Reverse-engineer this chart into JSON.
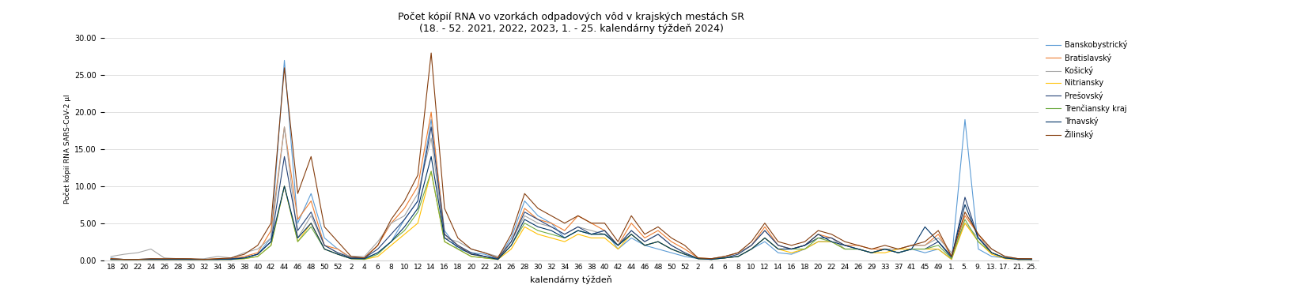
{
  "title_line1": "Počet kópií RNA vo vzorkách odpadových vôd v krajských mestách SR",
  "title_line2": "(18. - 52. 2021, 2022, 2023, 1. - 25. kalendárny týždeň 2024)",
  "xlabel": "kalendárny týždeň",
  "ylabel": "Počet kópií RNA SARS-CoV-2 µl",
  "ylim": [
    0,
    30
  ],
  "yticks": [
    0.0,
    5.0,
    10.0,
    15.0,
    20.0,
    25.0,
    30.0
  ],
  "regions": [
    "Banskobystrický",
    "Bratislavský",
    "Košický",
    "Nitriansky",
    "Prešovský",
    "Trenčiansky kraj",
    "Trnavský",
    "Žilinský"
  ],
  "colors": [
    "#5B9BD5",
    "#ED7D31",
    "#A5A5A5",
    "#FFC000",
    "#264478",
    "#70AD47",
    "#003366",
    "#843C0C"
  ],
  "x_labels": [
    "18",
    "20",
    "22",
    "24",
    "26",
    "28",
    "30",
    "32",
    "34",
    "36",
    "38",
    "40",
    "42",
    "44",
    "46",
    "48",
    "50",
    "52",
    "2",
    "4",
    "6",
    "8",
    "10",
    "12",
    "14",
    "16",
    "18",
    "20",
    "22",
    "24",
    "26",
    "28",
    "30",
    "32",
    "34",
    "36",
    "38",
    "40",
    "42",
    "44",
    "46",
    "48",
    "50",
    "52",
    "2",
    "4",
    "6",
    "8",
    "10",
    "12",
    "14",
    "16",
    "18",
    "20",
    "22",
    "24",
    "26",
    "29",
    "33",
    "37",
    "41",
    "45",
    "49",
    "1.",
    "5.",
    "9.",
    "13.",
    "17.",
    "21.",
    "25."
  ],
  "series": {
    "Banskobystrický": [
      0.3,
      0.1,
      0.1,
      0.2,
      0.1,
      0.2,
      0.1,
      0.1,
      0.1,
      0.2,
      0.3,
      0.8,
      3.0,
      27.0,
      5.0,
      9.0,
      3.0,
      1.5,
      0.3,
      0.2,
      1.0,
      2.5,
      5.5,
      8.0,
      19.0,
      4.0,
      1.5,
      1.0,
      0.8,
      0.2,
      3.0,
      8.0,
      6.0,
      5.0,
      3.0,
      4.0,
      3.5,
      4.0,
      1.5,
      3.0,
      2.0,
      1.5,
      1.0,
      0.5,
      0.2,
      0.1,
      0.3,
      0.5,
      1.5,
      2.5,
      1.0,
      0.8,
      1.5,
      2.5,
      2.5,
      1.5,
      1.5,
      1.0,
      1.5,
      1.0,
      1.5,
      1.0,
      1.5,
      0.1,
      19.0,
      1.5,
      0.5,
      0.3,
      0.1,
      0.1
    ],
    "Bratislavský": [
      0.2,
      0.1,
      0.1,
      0.1,
      0.1,
      0.1,
      0.1,
      0.1,
      0.2,
      0.2,
      0.5,
      1.0,
      4.0,
      18.0,
      5.5,
      8.0,
      2.0,
      1.5,
      0.3,
      0.3,
      2.0,
      5.0,
      7.0,
      10.0,
      20.0,
      3.5,
      2.0,
      0.8,
      0.5,
      0.1,
      2.5,
      7.0,
      5.5,
      5.0,
      4.0,
      6.0,
      5.0,
      4.0,
      2.0,
      5.0,
      3.0,
      4.0,
      2.5,
      1.5,
      0.3,
      0.2,
      0.5,
      1.0,
      2.0,
      4.5,
      2.0,
      1.5,
      2.0,
      3.5,
      3.0,
      2.0,
      2.0,
      1.5,
      1.5,
      1.5,
      2.0,
      2.0,
      3.5,
      0.5,
      6.0,
      3.5,
      1.0,
      0.3,
      0.1,
      0.2
    ],
    "Košický": [
      0.5,
      0.8,
      1.0,
      1.5,
      0.3,
      0.2,
      0.1,
      0.2,
      0.5,
      0.3,
      1.0,
      1.5,
      3.0,
      18.0,
      3.0,
      6.0,
      2.0,
      1.0,
      0.5,
      0.5,
      2.5,
      5.0,
      6.0,
      9.0,
      16.5,
      3.0,
      2.5,
      1.5,
      1.0,
      0.5,
      2.5,
      6.0,
      5.0,
      4.5,
      3.5,
      4.5,
      4.0,
      3.5,
      2.0,
      4.0,
      2.5,
      3.5,
      2.0,
      1.0,
      0.2,
      0.2,
      0.5,
      1.0,
      2.0,
      4.0,
      2.0,
      1.5,
      2.0,
      3.0,
      3.0,
      1.5,
      1.5,
      1.0,
      1.5,
      1.5,
      2.0,
      2.0,
      3.0,
      1.0,
      5.0,
      3.0,
      1.5,
      0.5,
      0.2,
      0.2
    ],
    "Nitriansky": [
      0.1,
      0.1,
      0.1,
      0.1,
      0.1,
      0.1,
      0.1,
      0.1,
      0.1,
      0.1,
      0.2,
      0.5,
      2.0,
      10.0,
      2.5,
      5.0,
      1.5,
      0.8,
      0.2,
      0.1,
      0.5,
      2.0,
      3.5,
      5.0,
      12.0,
      2.5,
      1.5,
      0.5,
      0.3,
      0.1,
      1.5,
      4.5,
      3.5,
      3.0,
      2.5,
      3.5,
      3.0,
      3.0,
      1.5,
      3.5,
      2.0,
      2.5,
      1.5,
      0.8,
      0.2,
      0.1,
      0.3,
      0.5,
      1.5,
      3.0,
      1.5,
      1.0,
      1.5,
      2.5,
      2.5,
      1.5,
      1.5,
      1.0,
      1.0,
      1.5,
      1.5,
      1.5,
      1.5,
      0.1,
      5.0,
      2.5,
      0.8,
      0.2,
      0.1,
      0.1
    ],
    "Prešovský": [
      0.1,
      0.1,
      0.1,
      0.1,
      0.1,
      0.1,
      0.1,
      0.1,
      0.1,
      0.2,
      0.3,
      0.8,
      2.5,
      14.0,
      4.0,
      6.5,
      2.0,
      1.0,
      0.3,
      0.3,
      1.5,
      3.5,
      5.5,
      8.0,
      18.0,
      3.5,
      2.0,
      1.0,
      0.5,
      0.2,
      2.5,
      6.5,
      5.5,
      4.5,
      3.5,
      4.5,
      3.5,
      4.0,
      2.0,
      4.0,
      2.5,
      3.5,
      2.0,
      1.0,
      0.2,
      0.2,
      0.3,
      0.8,
      2.0,
      4.0,
      2.0,
      1.5,
      2.0,
      3.0,
      3.0,
      2.0,
      1.5,
      1.0,
      1.5,
      1.0,
      1.5,
      1.5,
      2.5,
      0.3,
      8.5,
      3.0,
      1.0,
      0.3,
      0.2,
      0.1
    ],
    "Trenčiansky kraj": [
      0.1,
      0.1,
      0.1,
      0.1,
      0.1,
      0.1,
      0.1,
      0.1,
      0.1,
      0.1,
      0.2,
      0.5,
      2.0,
      10.0,
      2.5,
      4.5,
      1.5,
      0.8,
      0.2,
      0.1,
      0.8,
      2.5,
      4.0,
      6.5,
      12.0,
      2.5,
      1.5,
      0.5,
      0.3,
      0.1,
      2.0,
      5.0,
      4.0,
      3.5,
      3.0,
      4.0,
      3.5,
      3.5,
      2.0,
      3.5,
      2.0,
      2.5,
      1.5,
      0.8,
      0.2,
      0.1,
      0.3,
      0.5,
      1.5,
      3.0,
      1.5,
      1.5,
      1.5,
      3.0,
      2.5,
      1.5,
      1.5,
      1.0,
      1.5,
      1.0,
      1.5,
      1.5,
      2.0,
      0.2,
      5.5,
      2.5,
      1.0,
      0.3,
      0.1,
      0.1
    ],
    "Trnavský": [
      0.1,
      0.1,
      0.1,
      0.1,
      0.1,
      0.1,
      0.1,
      0.1,
      0.1,
      0.1,
      0.3,
      0.8,
      2.5,
      10.0,
      3.0,
      5.0,
      1.5,
      0.8,
      0.2,
      0.2,
      1.0,
      2.5,
      4.5,
      7.0,
      14.0,
      3.0,
      1.8,
      0.8,
      0.5,
      0.1,
      2.0,
      5.5,
      4.5,
      4.0,
      3.0,
      4.0,
      3.5,
      3.5,
      2.0,
      3.5,
      2.0,
      2.5,
      1.5,
      0.8,
      0.2,
      0.1,
      0.3,
      0.5,
      1.5,
      3.0,
      1.5,
      1.5,
      2.0,
      3.5,
      2.5,
      2.0,
      1.5,
      1.0,
      1.5,
      1.0,
      1.5,
      4.5,
      2.5,
      0.5,
      7.5,
      3.0,
      1.0,
      0.3,
      0.1,
      0.1
    ],
    "Žilinský": [
      0.2,
      0.1,
      0.1,
      0.2,
      0.2,
      0.2,
      0.2,
      0.1,
      0.2,
      0.3,
      0.8,
      2.0,
      5.0,
      26.0,
      9.0,
      14.0,
      4.5,
      2.5,
      0.5,
      0.3,
      2.0,
      5.5,
      8.0,
      11.5,
      28.0,
      7.0,
      3.0,
      1.5,
      1.0,
      0.3,
      3.5,
      9.0,
      7.0,
      6.0,
      5.0,
      6.0,
      5.0,
      5.0,
      2.5,
      6.0,
      3.5,
      4.5,
      3.0,
      2.0,
      0.3,
      0.2,
      0.5,
      1.0,
      2.5,
      5.0,
      2.5,
      2.0,
      2.5,
      4.0,
      3.5,
      2.5,
      2.0,
      1.5,
      2.0,
      1.5,
      2.0,
      2.5,
      4.0,
      0.5,
      6.5,
      3.5,
      1.5,
      0.5,
      0.2,
      0.2
    ]
  }
}
